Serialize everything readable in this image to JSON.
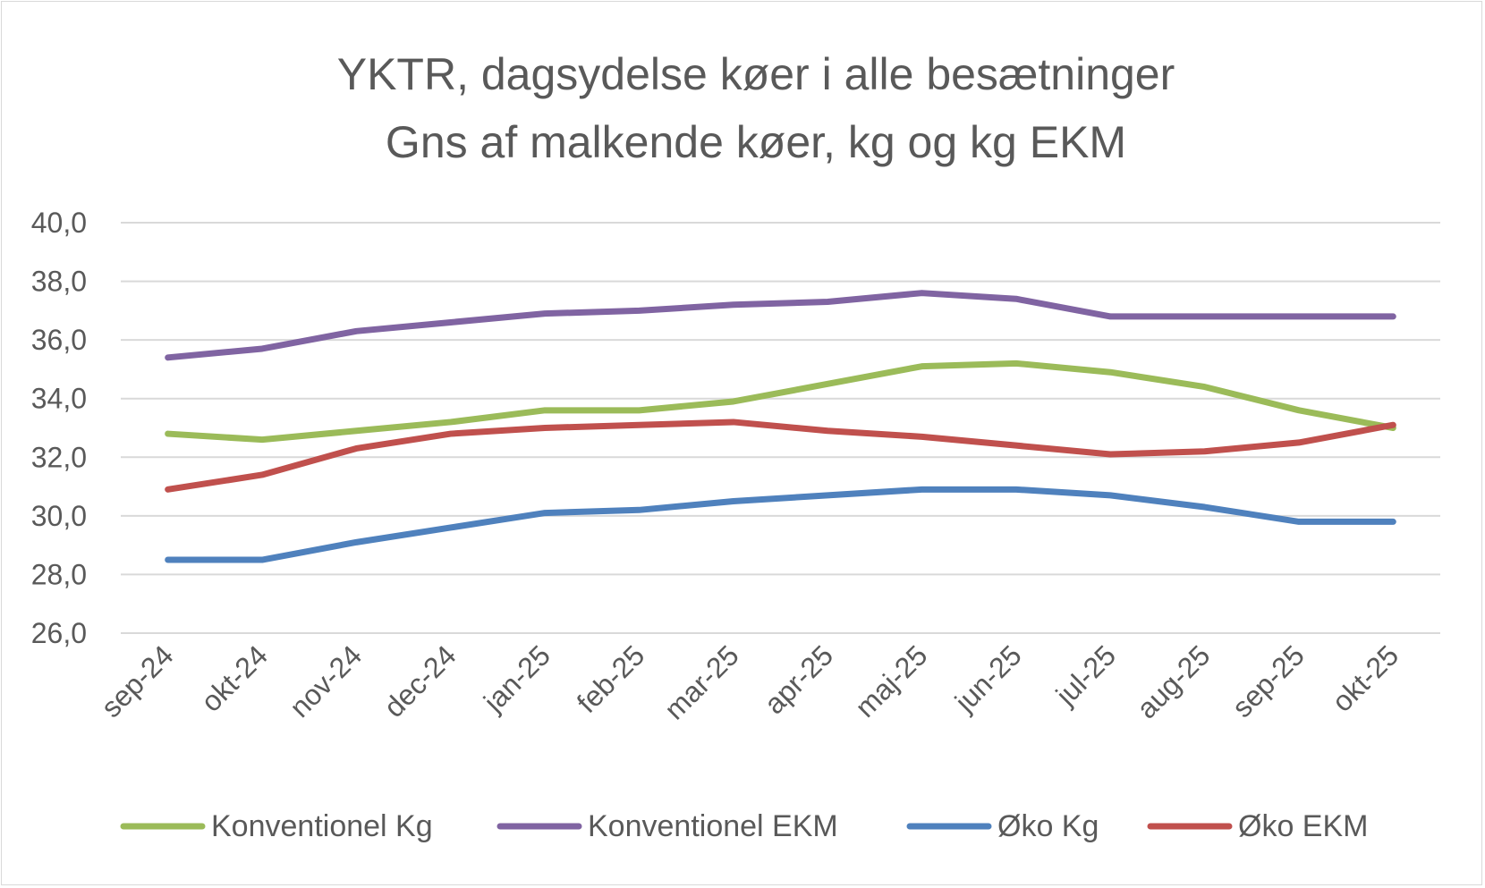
{
  "chart_data": {
    "type": "line",
    "title": [
      "YKTR, dagsydelse køer i alle besætninger",
      "Gns af malkende køer, kg og kg EKM"
    ],
    "xlabel": "",
    "ylabel": "",
    "categories": [
      "sep-24",
      "okt-24",
      "nov-24",
      "dec-24",
      "jan-25",
      "feb-25",
      "mar-25",
      "apr-25",
      "maj-25",
      "jun-25",
      "jul-25",
      "aug-25",
      "sep-25",
      "okt-25"
    ],
    "ylim": [
      26,
      40
    ],
    "yticks": [
      "26,0",
      "28,0",
      "30,0",
      "32,0",
      "34,0",
      "36,0",
      "38,0",
      "40,0"
    ],
    "grid": true,
    "legend_position": "bottom",
    "series": [
      {
        "name": "Konventionel Kg",
        "color": "#9bbb59",
        "values": [
          32.8,
          32.6,
          32.9,
          33.2,
          33.6,
          33.6,
          33.9,
          34.5,
          35.1,
          35.2,
          34.9,
          34.4,
          33.6,
          33.0
        ]
      },
      {
        "name": "Konventionel EKM",
        "color": "#8064a2",
        "values": [
          35.4,
          35.7,
          36.3,
          36.6,
          36.9,
          37.0,
          37.2,
          37.3,
          37.6,
          37.4,
          36.8,
          36.8,
          36.8,
          36.8
        ]
      },
      {
        "name": "Øko Kg",
        "color": "#4f81bd",
        "values": [
          28.5,
          28.5,
          29.1,
          29.6,
          30.1,
          30.2,
          30.5,
          30.7,
          30.9,
          30.9,
          30.7,
          30.3,
          29.8,
          29.8
        ]
      },
      {
        "name": "Øko EKM",
        "color": "#c0504d",
        "values": [
          30.9,
          31.4,
          32.3,
          32.8,
          33.0,
          33.1,
          33.2,
          32.9,
          32.7,
          32.4,
          32.1,
          32.2,
          32.5,
          33.1
        ]
      }
    ]
  }
}
